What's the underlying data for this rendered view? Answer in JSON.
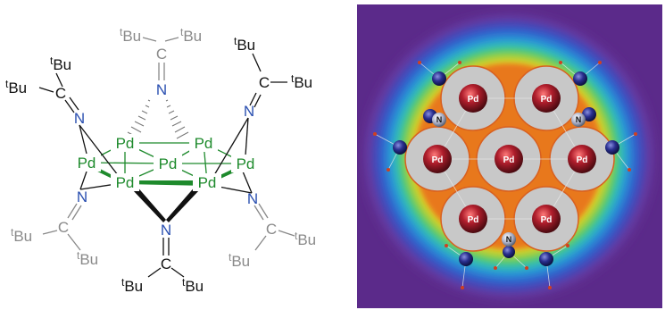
{
  "left_panel": {
    "metal": "Pd",
    "nitrogen": "N",
    "carbon": "C",
    "tbu_sup": "t",
    "tbu_base": "Bu"
  },
  "right_panel": {
    "atom_labels": {
      "palladium": "Pd",
      "nitrogen": "N"
    },
    "colors": {
      "background": "#5b2a8a",
      "pd_sphere": "#b01e2c",
      "n_sphere": "#2a2f8f",
      "density_core": "#c8c8c8",
      "density_rim": "#e8781c"
    }
  },
  "colors": {
    "pd_text": "#1e8a2c",
    "n_text": "#2a4fb0",
    "black_text": "#111111",
    "gray_text": "#8a8a8a"
  }
}
